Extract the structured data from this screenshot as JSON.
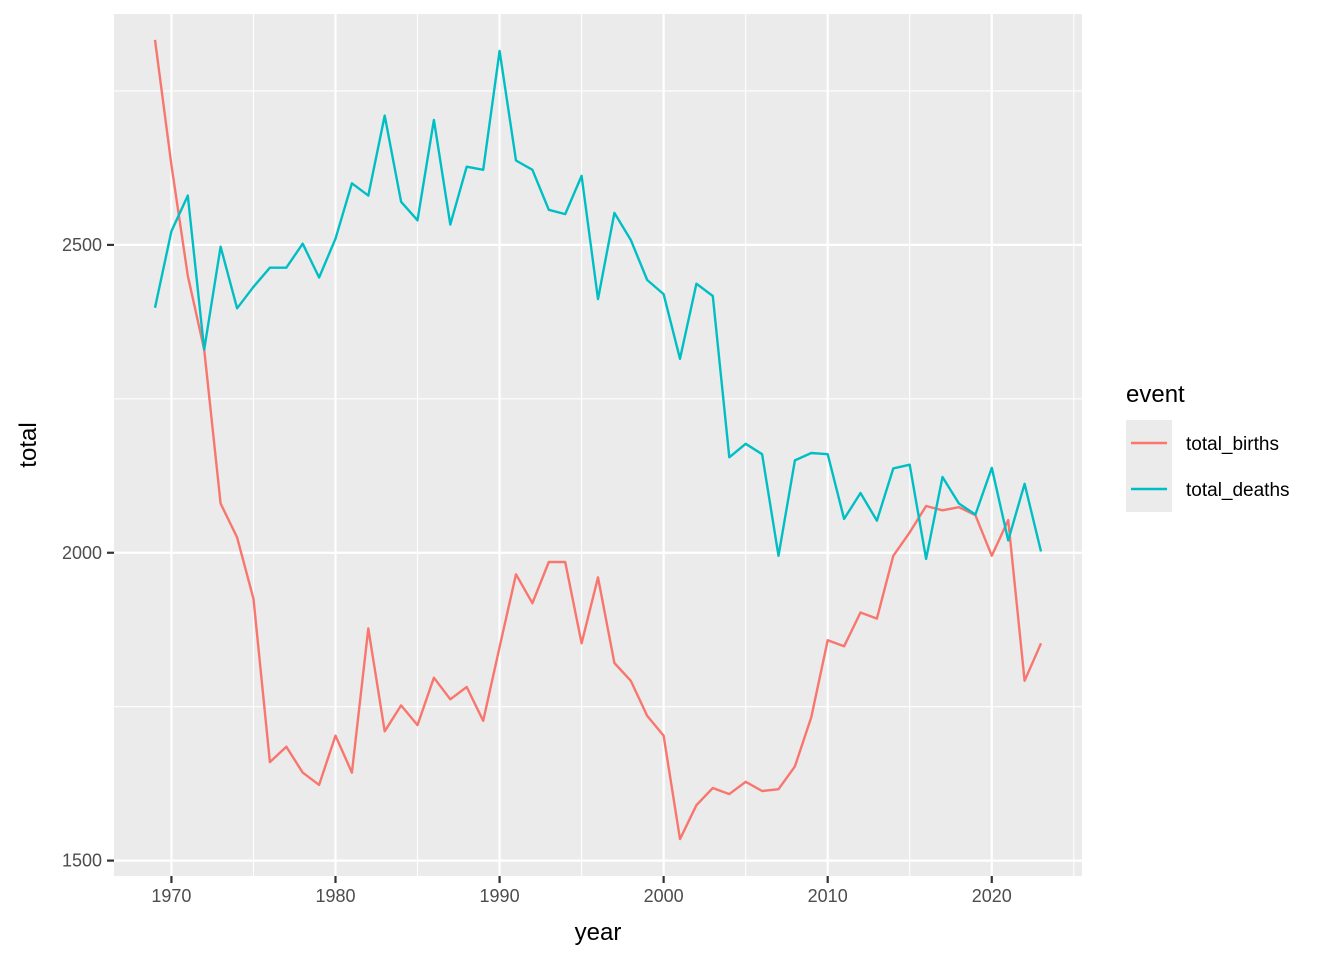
{
  "chart_data": {
    "type": "line",
    "xlabel": "year",
    "ylabel": "total",
    "xlim": [
      1966.5,
      2025.5
    ],
    "ylim": [
      1475,
      2875
    ],
    "xticks": [
      1970,
      1980,
      1990,
      2000,
      2010,
      2020
    ],
    "yticks": [
      1500,
      2000,
      2500
    ],
    "grid": true,
    "legend": {
      "title": "event",
      "position": "right"
    },
    "x": [
      1969,
      1970,
      1971,
      1972,
      1973,
      1974,
      1975,
      1976,
      1977,
      1978,
      1979,
      1980,
      1981,
      1982,
      1983,
      1984,
      1985,
      1986,
      1987,
      1988,
      1989,
      1990,
      1991,
      1992,
      1993,
      1994,
      1995,
      1996,
      1997,
      1998,
      1999,
      2000,
      2001,
      2002,
      2003,
      2004,
      2005,
      2006,
      2007,
      2008,
      2009,
      2010,
      2011,
      2012,
      2013,
      2014,
      2015,
      2016,
      2017,
      2018,
      2019,
      2020,
      2021,
      2022,
      2023
    ],
    "series": [
      {
        "name": "total_births",
        "color": "#F8766D",
        "values": [
          2833,
          2630,
          2450,
          2330,
          2080,
          2025,
          1925,
          1660,
          1685,
          1643,
          1623,
          1703,
          1643,
          1877,
          1710,
          1752,
          1720,
          1797,
          1762,
          1782,
          1727,
          1847,
          1965,
          1918,
          1985,
          1985,
          1853,
          1960,
          1821,
          1792,
          1735,
          1703,
          1535,
          1590,
          1618,
          1608,
          1628,
          1613,
          1616,
          1653,
          1733,
          1858,
          1848,
          1903,
          1893,
          1995,
          2033,
          2076,
          2069,
          2074,
          2061,
          1995,
          2053,
          1792,
          1853
        ],
        "point_labels": []
      },
      {
        "name": "total_deaths",
        "color": "#00BFC4",
        "values": [
          2398,
          2522,
          2580,
          2330,
          2497,
          2397,
          2432,
          2463,
          2463,
          2502,
          2447,
          2510,
          2600,
          2580,
          2710,
          2570,
          2540,
          2703,
          2533,
          2627,
          2622,
          2815,
          2637,
          2622,
          2557,
          2550,
          2612,
          2412,
          2552,
          2508,
          2443,
          2420,
          2315,
          2437,
          2417,
          2155,
          2177,
          2160,
          1995,
          2150,
          2162,
          2160,
          2055,
          2097,
          2052,
          2137,
          2143,
          1990,
          2123,
          2080,
          2062,
          2138,
          2020,
          2112,
          2002
        ],
        "point_labels": []
      }
    ]
  }
}
